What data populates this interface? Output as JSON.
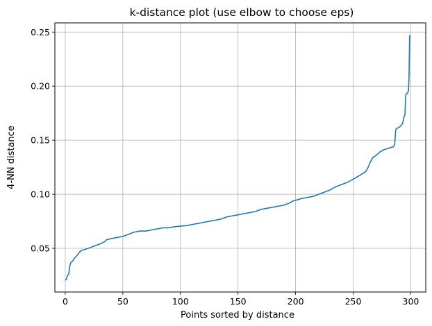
{
  "chart_data": {
    "type": "line",
    "title": "k-distance plot (use elbow to choose eps)",
    "xlabel": "Points sorted by distance",
    "ylabel": "4-NN distance",
    "xlim": [
      -9,
      313
    ],
    "ylim": [
      0.0096,
      0.2585
    ],
    "xticks": [
      0,
      50,
      100,
      150,
      200,
      250,
      300
    ],
    "yticks": [
      0.05,
      0.1,
      0.15,
      0.2,
      0.25
    ],
    "ytick_labels": [
      "0.05",
      "0.10",
      "0.15",
      "0.20",
      "0.25"
    ],
    "grid": true,
    "series": [
      {
        "color": "#1f77b4",
        "points": [
          [
            0,
            0.0205
          ],
          [
            1,
            0.0215
          ],
          [
            2,
            0.025
          ],
          [
            3,
            0.026
          ],
          [
            4,
            0.034
          ],
          [
            5,
            0.037
          ],
          [
            6,
            0.038
          ],
          [
            7,
            0.039
          ],
          [
            8,
            0.041
          ],
          [
            10,
            0.043
          ],
          [
            12,
            0.046
          ],
          [
            14,
            0.048
          ],
          [
            17,
            0.049
          ],
          [
            20,
            0.05
          ],
          [
            25,
            0.052
          ],
          [
            30,
            0.054
          ],
          [
            34,
            0.056
          ],
          [
            36,
            0.058
          ],
          [
            40,
            0.059
          ],
          [
            45,
            0.06
          ],
          [
            50,
            0.061
          ],
          [
            55,
            0.063
          ],
          [
            60,
            0.065
          ],
          [
            65,
            0.066
          ],
          [
            70,
            0.066
          ],
          [
            75,
            0.067
          ],
          [
            80,
            0.068
          ],
          [
            85,
            0.069
          ],
          [
            90,
            0.069
          ],
          [
            95,
            0.07
          ],
          [
            100,
            0.0705
          ],
          [
            105,
            0.071
          ],
          [
            110,
            0.072
          ],
          [
            115,
            0.073
          ],
          [
            120,
            0.074
          ],
          [
            125,
            0.075
          ],
          [
            130,
            0.076
          ],
          [
            135,
            0.077
          ],
          [
            140,
            0.079
          ],
          [
            145,
            0.08
          ],
          [
            150,
            0.081
          ],
          [
            155,
            0.082
          ],
          [
            160,
            0.083
          ],
          [
            165,
            0.084
          ],
          [
            170,
            0.086
          ],
          [
            175,
            0.087
          ],
          [
            180,
            0.088
          ],
          [
            185,
            0.089
          ],
          [
            190,
            0.09
          ],
          [
            195,
            0.092
          ],
          [
            198,
            0.094
          ],
          [
            202,
            0.095
          ],
          [
            205,
            0.096
          ],
          [
            210,
            0.097
          ],
          [
            215,
            0.098
          ],
          [
            220,
            0.1
          ],
          [
            225,
            0.102
          ],
          [
            230,
            0.104
          ],
          [
            235,
            0.107
          ],
          [
            240,
            0.109
          ],
          [
            245,
            0.111
          ],
          [
            250,
            0.114
          ],
          [
            255,
            0.117
          ],
          [
            258,
            0.119
          ],
          [
            261,
            0.121
          ],
          [
            263,
            0.125
          ],
          [
            265,
            0.13
          ],
          [
            267,
            0.134
          ],
          [
            270,
            0.136
          ],
          [
            273,
            0.139
          ],
          [
            276,
            0.141
          ],
          [
            279,
            0.142
          ],
          [
            282,
            0.143
          ],
          [
            285,
            0.144
          ],
          [
            286,
            0.146
          ],
          [
            287,
            0.16
          ],
          [
            288,
            0.161
          ],
          [
            290,
            0.162
          ],
          [
            292,
            0.164
          ],
          [
            293,
            0.166
          ],
          [
            294,
            0.171
          ],
          [
            295,
            0.174
          ],
          [
            295.5,
            0.191
          ],
          [
            296,
            0.193
          ],
          [
            297,
            0.193
          ],
          [
            298,
            0.196
          ],
          [
            298.5,
            0.21
          ],
          [
            299,
            0.247
          ]
        ]
      }
    ]
  }
}
